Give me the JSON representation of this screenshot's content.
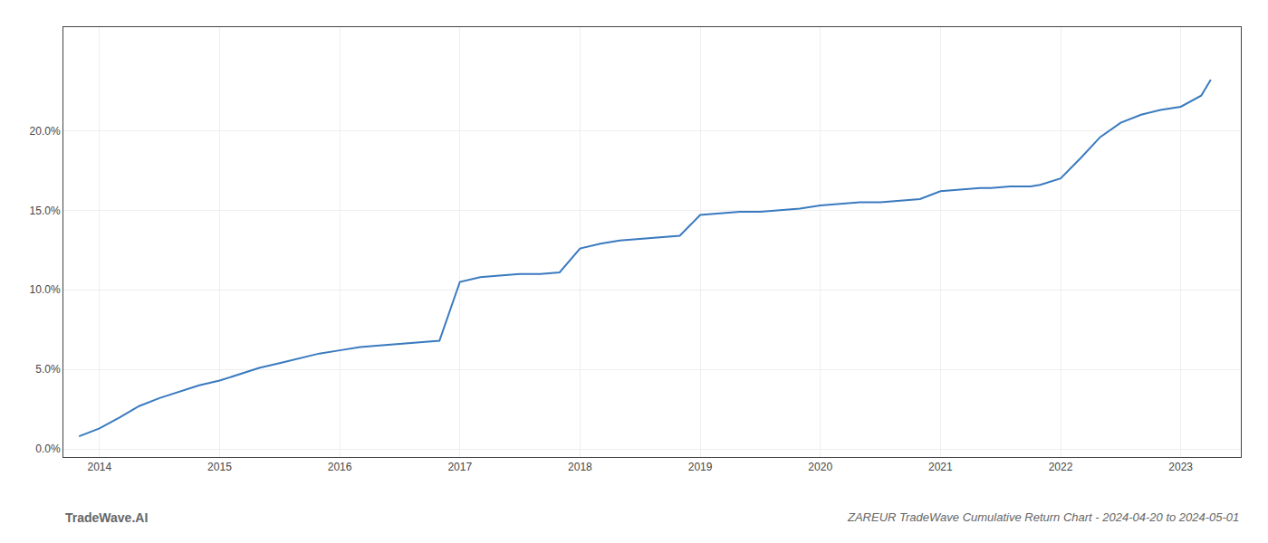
{
  "chart_data": {
    "type": "line",
    "title": "ZAREUR TradeWave Cumulative Return Chart - 2024-04-20 to 2024-05-01",
    "annotations": [
      "TradeWave.AI"
    ],
    "x": [
      2013.83,
      2014.0,
      2014.17,
      2014.33,
      2014.5,
      2014.67,
      2014.83,
      2015.0,
      2015.17,
      2015.33,
      2015.5,
      2015.67,
      2015.83,
      2016.0,
      2016.17,
      2016.33,
      2016.5,
      2016.67,
      2016.83,
      2017.0,
      2017.17,
      2017.33,
      2017.5,
      2017.67,
      2017.83,
      2018.0,
      2018.17,
      2018.33,
      2018.5,
      2018.67,
      2018.83,
      2019.0,
      2019.17,
      2019.33,
      2019.5,
      2019.67,
      2019.83,
      2020.0,
      2020.17,
      2020.33,
      2020.5,
      2020.67,
      2020.83,
      2021.0,
      2021.17,
      2021.33,
      2021.42,
      2021.58,
      2021.75,
      2021.83,
      2022.0,
      2022.17,
      2022.33,
      2022.5,
      2022.67,
      2022.83,
      2023.0,
      2023.17,
      2023.25
    ],
    "values": [
      0.008,
      0.013,
      0.02,
      0.027,
      0.032,
      0.036,
      0.04,
      0.043,
      0.047,
      0.051,
      0.054,
      0.057,
      0.06,
      0.062,
      0.064,
      0.065,
      0.066,
      0.067,
      0.068,
      0.105,
      0.108,
      0.109,
      0.11,
      0.11,
      0.111,
      0.126,
      0.129,
      0.131,
      0.132,
      0.133,
      0.134,
      0.147,
      0.148,
      0.149,
      0.149,
      0.15,
      0.151,
      0.153,
      0.154,
      0.155,
      0.155,
      0.156,
      0.157,
      0.162,
      0.163,
      0.164,
      0.164,
      0.165,
      0.165,
      0.166,
      0.17,
      0.183,
      0.196,
      0.205,
      0.21,
      0.213,
      0.215,
      0.222,
      0.232
    ],
    "color": "#3a7abf",
    "xlim": [
      2013.7,
      2023.5
    ],
    "xticks": [
      2014,
      2015,
      2016,
      2017,
      2018,
      2019,
      2020,
      2021,
      2022,
      2023
    ],
    "ylim": [
      -0.005,
      0.265
    ],
    "yticks": [
      {
        "value": 0.0,
        "label": "0.0%"
      },
      {
        "value": 0.05,
        "label": "5.0%"
      },
      {
        "value": 0.1,
        "label": "10.0%"
      },
      {
        "value": 0.15,
        "label": "15.0%"
      },
      {
        "value": 0.2,
        "label": "20.0%"
      }
    ],
    "grid": true
  }
}
